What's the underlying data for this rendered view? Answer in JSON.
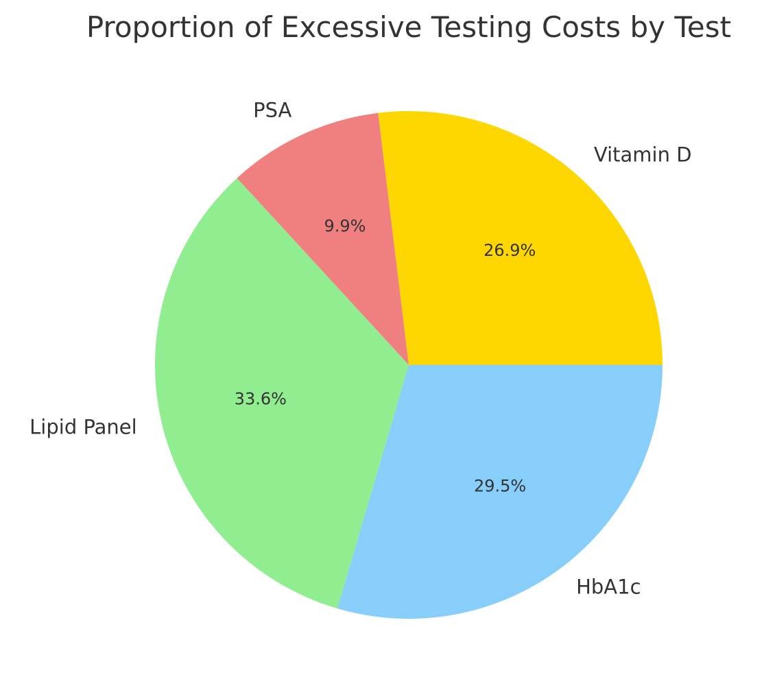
{
  "chart_data": {
    "type": "pie",
    "title": "Proportion of Excessive Testing Costs by Test",
    "start_angle_deg": 0,
    "direction": "counterclockwise",
    "slices": [
      {
        "label": "Vitamin D",
        "percent": 26.9,
        "percent_label": "26.9%",
        "color": "#ffd700"
      },
      {
        "label": "PSA",
        "percent": 9.9,
        "percent_label": "9.9%",
        "color": "#f08080"
      },
      {
        "label": "Lipid Panel",
        "percent": 33.6,
        "percent_label": "33.6%",
        "color": "#90ee90"
      },
      {
        "label": "HbA1c",
        "percent": 29.5,
        "percent_label": "29.5%",
        "color": "#87cefa"
      }
    ]
  }
}
